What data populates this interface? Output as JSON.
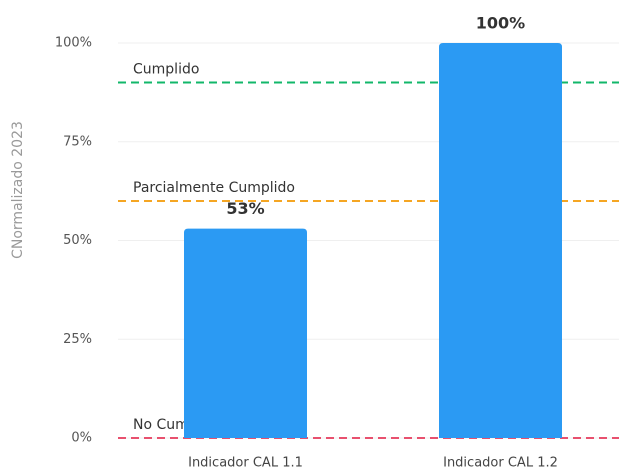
{
  "chart_data": {
    "type": "bar",
    "y_label": "CNormalizado 2023",
    "categories": [
      "Indicador CAL 1.1",
      "Indicador CAL 1.2"
    ],
    "values": [
      53,
      100
    ],
    "value_labels": [
      "53%",
      "100%"
    ],
    "color": "#2b9af3",
    "ylim": [
      0,
      100
    ],
    "yticks": [
      {
        "value": 0,
        "label": "0%"
      },
      {
        "value": 25,
        "label": "25%"
      },
      {
        "value": 50,
        "label": "50%"
      },
      {
        "value": 75,
        "label": "75%"
      },
      {
        "value": 100,
        "label": "100%"
      }
    ],
    "grid": true,
    "reference_lines": [
      {
        "label": "Cumplido",
        "value": 90,
        "color": "#12b76a"
      },
      {
        "label": "Parcialmente Cumplido",
        "value": 60,
        "color": "#f5a623"
      },
      {
        "label": "No Cumplido",
        "value": 0,
        "color": "#e8506e"
      }
    ]
  }
}
